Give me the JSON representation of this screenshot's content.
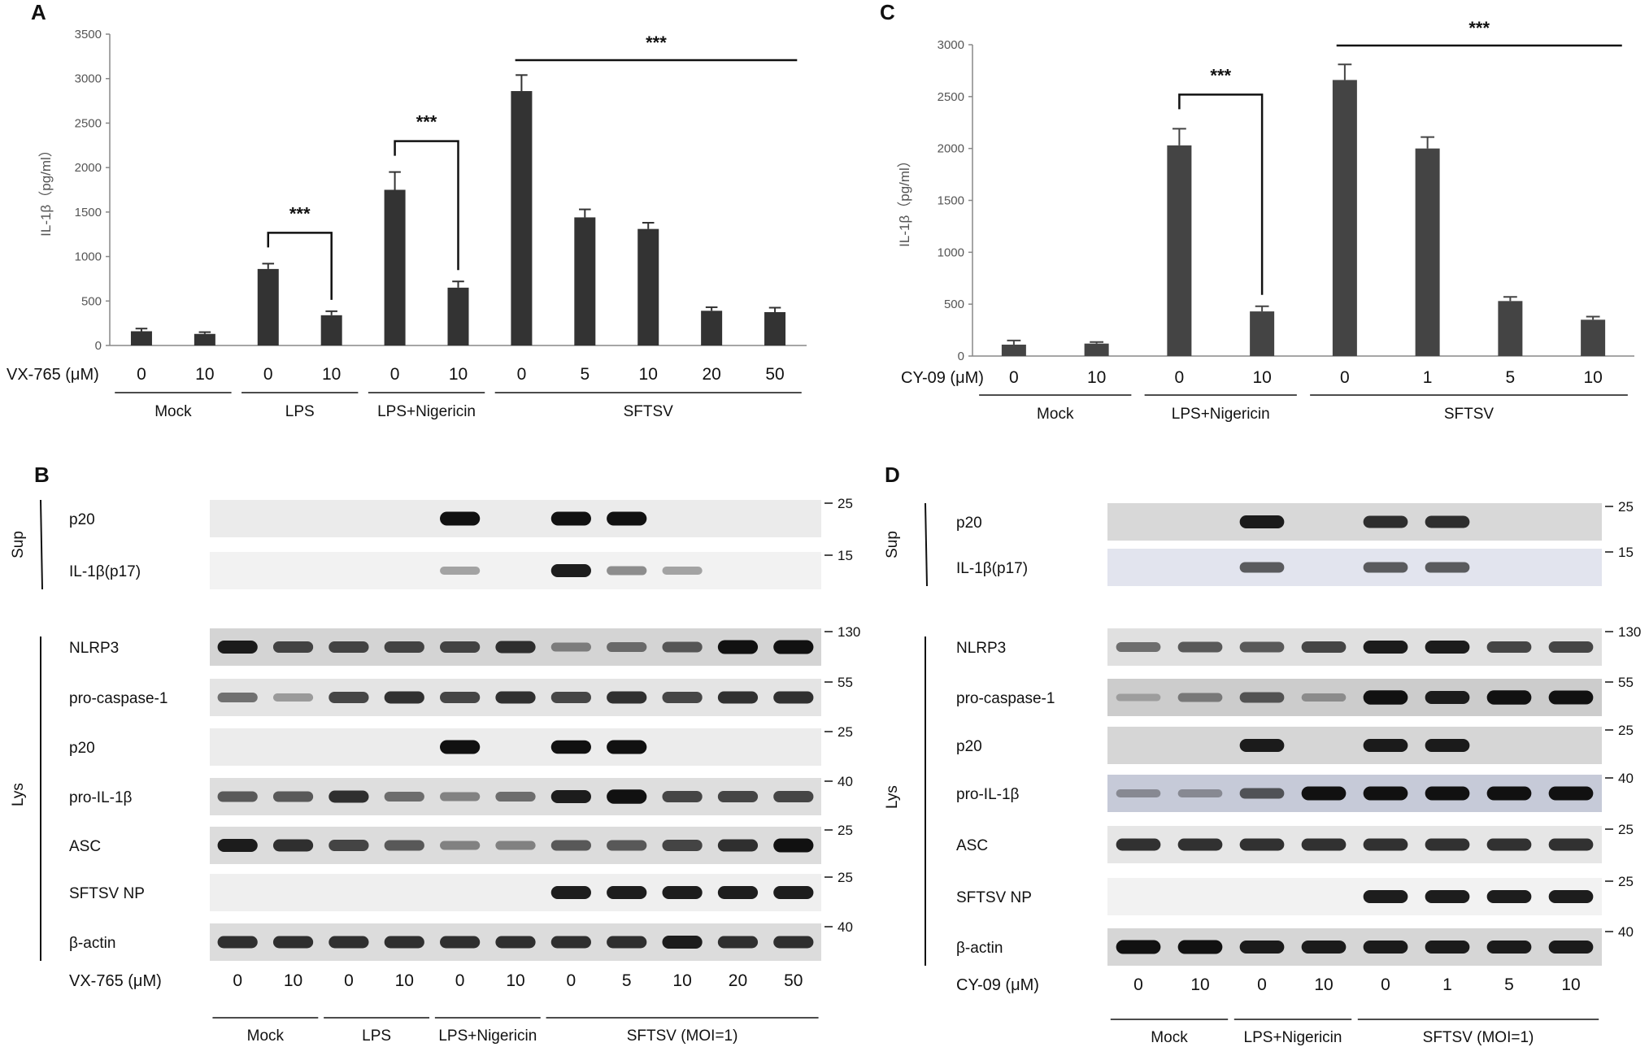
{
  "panels": {
    "A": "A",
    "B": "B",
    "C": "C",
    "D": "D"
  },
  "chart_data": [
    {
      "id": "A",
      "type": "bar",
      "ylabel": "IL-1β（pg/ml）",
      "ylim": [
        0,
        3500
      ],
      "yticks": [
        0,
        500,
        1000,
        1500,
        2000,
        2500,
        3000,
        3500
      ],
      "xname": "VX-765 (μM)",
      "categories": [
        "0",
        "10",
        "0",
        "10",
        "0",
        "10",
        "0",
        "5",
        "10",
        "20",
        "50"
      ],
      "values": [
        160,
        130,
        860,
        340,
        1750,
        650,
        2860,
        1440,
        1310,
        390,
        375
      ],
      "errors": [
        30,
        20,
        60,
        45,
        200,
        70,
        180,
        90,
        70,
        40,
        50
      ],
      "groups": [
        {
          "label": "Mock",
          "from": 0,
          "to": 1
        },
        {
          "label": "LPS",
          "from": 2,
          "to": 3
        },
        {
          "label": "LPS+Nigericin",
          "from": 4,
          "to": 5
        },
        {
          "label": "SFTSV",
          "from": 6,
          "to": 10
        }
      ],
      "significance": [
        {
          "label": "***",
          "from": 2,
          "to": 3,
          "type": "bracket"
        },
        {
          "label": "***",
          "from": 4,
          "to": 5,
          "type": "bracket"
        },
        {
          "label": "***",
          "from": 6,
          "to": 10,
          "type": "line"
        }
      ]
    },
    {
      "id": "C",
      "type": "bar",
      "ylabel": "IL-1β（pg/ml）",
      "ylim": [
        0,
        3000
      ],
      "yticks": [
        0,
        500,
        1000,
        1500,
        2000,
        2500,
        3000
      ],
      "xname": "CY-09 (μM)",
      "categories": [
        "0",
        "10",
        "0",
        "10",
        "0",
        "1",
        "5",
        "10"
      ],
      "values": [
        110,
        120,
        2030,
        430,
        2660,
        2000,
        530,
        350
      ],
      "errors": [
        40,
        15,
        160,
        50,
        150,
        110,
        40,
        30
      ],
      "groups": [
        {
          "label": "Mock",
          "from": 0,
          "to": 1
        },
        {
          "label": "LPS+Nigericin",
          "from": 2,
          "to": 3
        },
        {
          "label": "SFTSV",
          "from": 4,
          "to": 7
        }
      ],
      "significance": [
        {
          "label": "***",
          "from": 2,
          "to": 3,
          "type": "bracket"
        },
        {
          "label": "***",
          "from": 4,
          "to": 7,
          "type": "line"
        }
      ]
    }
  ],
  "blots": [
    {
      "id": "B",
      "sup_label": "Sup",
      "lys_label": "Lys",
      "xname": "VX-765 (μM)",
      "lanes": [
        "0",
        "10",
        "0",
        "10",
        "0",
        "10",
        "0",
        "5",
        "10",
        "20",
        "50"
      ],
      "groups": [
        {
          "label": "Mock",
          "from": 0,
          "to": 1
        },
        {
          "label": "LPS",
          "from": 2,
          "to": 3
        },
        {
          "label": "LPS+Nigericin",
          "from": 4,
          "to": 5
        },
        {
          "label": "SFTSV (MOI=1)",
          "from": 6,
          "to": 10
        }
      ],
      "rows": [
        {
          "label": "p20",
          "mw": "25",
          "section": "sup",
          "intensity": [
            0,
            0,
            0,
            0,
            0.9,
            0,
            0.9,
            0.9,
            0,
            0,
            0
          ]
        },
        {
          "label": "IL-1β(p17)",
          "mw": "15",
          "section": "sup",
          "intensity": [
            0,
            0,
            0,
            0,
            0.2,
            0,
            0.8,
            0.3,
            0.2,
            0,
            0
          ]
        },
        {
          "label": "NLRP3",
          "mw": "130",
          "section": "lys",
          "intensity": [
            0.8,
            0.6,
            0.6,
            0.6,
            0.6,
            0.7,
            0.3,
            0.4,
            0.5,
            0.9,
            0.9
          ]
        },
        {
          "label": "pro-caspase-1",
          "mw": "55",
          "section": "lys",
          "intensity": [
            0.4,
            0.2,
            0.6,
            0.7,
            0.6,
            0.7,
            0.6,
            0.7,
            0.6,
            0.7,
            0.7
          ]
        },
        {
          "label": "p20",
          "mw": "25",
          "section": "lys",
          "intensity": [
            0,
            0,
            0,
            0,
            0.9,
            0,
            0.85,
            0.9,
            0,
            0,
            0
          ]
        },
        {
          "label": "pro-IL-1β",
          "mw": "40",
          "section": "lys",
          "intensity": [
            0.5,
            0.5,
            0.7,
            0.4,
            0.3,
            0.4,
            0.8,
            0.95,
            0.6,
            0.6,
            0.6
          ]
        },
        {
          "label": "ASC",
          "mw": "25",
          "section": "lys",
          "intensity": [
            0.8,
            0.7,
            0.6,
            0.5,
            0.3,
            0.3,
            0.5,
            0.5,
            0.6,
            0.7,
            0.9
          ]
        },
        {
          "label": "SFTSV NP",
          "mw": "25",
          "section": "lys",
          "intensity": [
            0,
            0,
            0,
            0,
            0,
            0,
            0.8,
            0.8,
            0.8,
            0.8,
            0.8
          ]
        },
        {
          "label": "β-actin",
          "mw": "40",
          "section": "lys",
          "intensity": [
            0.7,
            0.7,
            0.7,
            0.7,
            0.7,
            0.7,
            0.7,
            0.7,
            0.8,
            0.7,
            0.7
          ]
        }
      ]
    },
    {
      "id": "D",
      "sup_label": "Sup",
      "lys_label": "Lys",
      "xname": "CY-09 (μM)",
      "lanes": [
        "0",
        "10",
        "0",
        "10",
        "0",
        "1",
        "5",
        "10"
      ],
      "groups": [
        {
          "label": "Mock",
          "from": 0,
          "to": 1
        },
        {
          "label": "LPS+Nigericin",
          "from": 2,
          "to": 3
        },
        {
          "label": "SFTSV (MOI=1)",
          "from": 4,
          "to": 7
        }
      ],
      "rows": [
        {
          "label": "p20",
          "mw": "25",
          "section": "sup",
          "intensity": [
            0,
            0,
            0.8,
            0,
            0.7,
            0.7,
            0,
            0
          ]
        },
        {
          "label": "IL-1β(p17)",
          "mw": "15",
          "section": "sup",
          "intensity": [
            0,
            0,
            0.5,
            0,
            0.5,
            0.5,
            0,
            0
          ]
        },
        {
          "label": "NLRP3",
          "mw": "130",
          "section": "lys",
          "intensity": [
            0.4,
            0.5,
            0.5,
            0.6,
            0.8,
            0.8,
            0.6,
            0.6
          ]
        },
        {
          "label": "pro-caspase-1",
          "mw": "55",
          "section": "lys",
          "intensity": [
            0.1,
            0.3,
            0.5,
            0.2,
            0.95,
            0.8,
            0.95,
            0.9
          ]
        },
        {
          "label": "p20",
          "mw": "25",
          "section": "lys",
          "intensity": [
            0,
            0,
            0.8,
            0,
            0.8,
            0.8,
            0,
            0
          ]
        },
        {
          "label": "pro-IL-1β",
          "mw": "40",
          "section": "lys",
          "intensity": [
            0.2,
            0.2,
            0.5,
            0.9,
            0.9,
            0.9,
            0.9,
            0.9
          ]
        },
        {
          "label": "ASC",
          "mw": "25",
          "section": "lys",
          "intensity": [
            0.7,
            0.7,
            0.7,
            0.7,
            0.7,
            0.7,
            0.7,
            0.7
          ]
        },
        {
          "label": "SFTSV NP",
          "mw": "25",
          "section": "lys",
          "intensity": [
            0,
            0,
            0,
            0,
            0.8,
            0.8,
            0.8,
            0.8
          ]
        },
        {
          "label": "β-actin",
          "mw": "40",
          "section": "lys",
          "intensity": [
            0.9,
            0.9,
            0.8,
            0.8,
            0.8,
            0.8,
            0.8,
            0.8
          ]
        }
      ]
    }
  ],
  "colors": {
    "bar": "#333333",
    "bar_c": "#444444",
    "axis": "#888888",
    "band": "#111111"
  }
}
